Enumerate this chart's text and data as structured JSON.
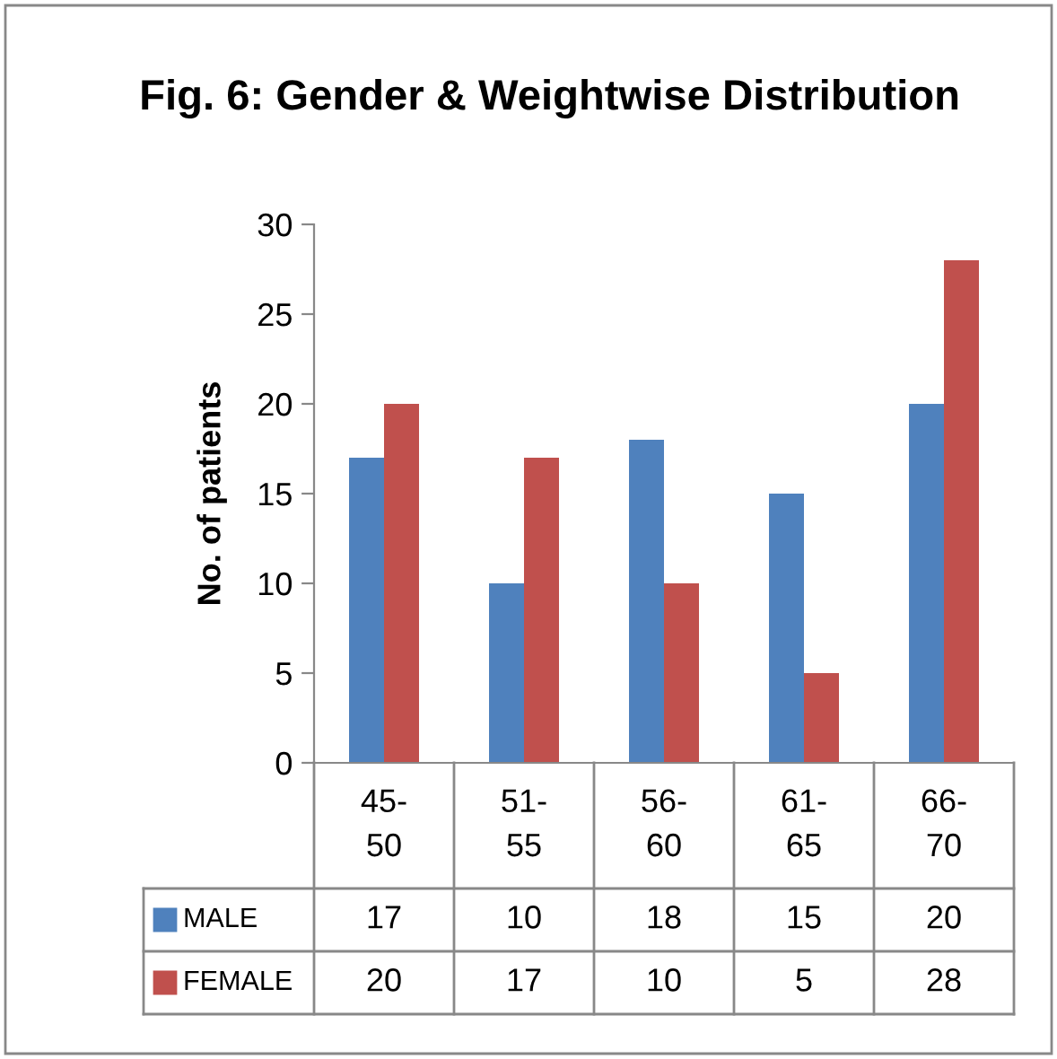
{
  "chart_data": {
    "type": "bar",
    "title": "Fig. 6: Gender & Weightwise Distribution",
    "ylabel": "No. of patients",
    "categories": [
      "45-50",
      "51-55",
      "56-60",
      "61-65",
      "66-70"
    ],
    "series": [
      {
        "name": "MALE",
        "color": "#4f81bd",
        "values": [
          17,
          10,
          18,
          15,
          20
        ]
      },
      {
        "name": "FEMALE",
        "color": "#c0504d",
        "values": [
          20,
          17,
          10,
          5,
          28
        ]
      }
    ],
    "ylim": [
      0,
      30
    ],
    "yticks": [
      0,
      5,
      10,
      15,
      20,
      25,
      30
    ],
    "grid": false,
    "data_labels": true,
    "legend": "bottom"
  }
}
